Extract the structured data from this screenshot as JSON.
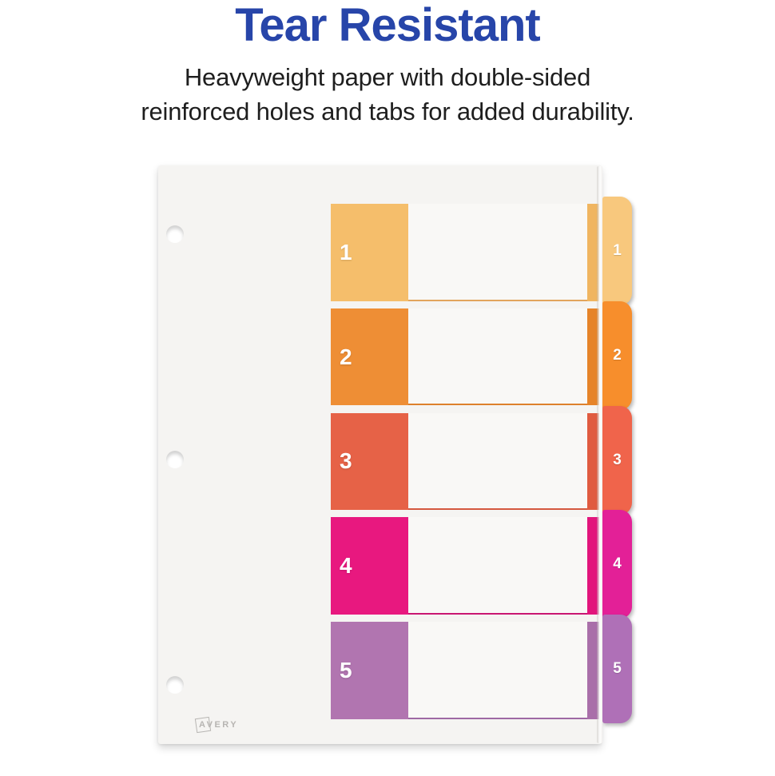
{
  "header": {
    "title": "Tear Resistant",
    "subtitle_line1": "Heavyweight paper with double-sided",
    "subtitle_line2": "reinforced holes and tabs for added durability."
  },
  "theme": {
    "title_color": "#2745A9",
    "subtitle_color": "#1E1E1E",
    "page_background": "#FFFFFF",
    "sheet_color": "#F5F4F2",
    "row_area_color": "#F9F8F6",
    "hole_color": "#FFFFFF",
    "brand_color": "#B7B5B2"
  },
  "product": {
    "brand": "AVERY",
    "type": "customizable-table-of-contents-divider",
    "hole_count": 3,
    "tabs": [
      {
        "label": "1",
        "block_color": "#F5BE6B",
        "tab_color": "#F8C87D",
        "strip_color": "#F0B560",
        "line_color": "#E2A45C"
      },
      {
        "label": "2",
        "block_color": "#EE8E35",
        "tab_color": "#F78E2C",
        "strip_color": "#E68429",
        "line_color": "#DD812D"
      },
      {
        "label": "3",
        "block_color": "#E66247",
        "tab_color": "#F0644B",
        "strip_color": "#E05B40",
        "line_color": "#D5583E"
      },
      {
        "label": "4",
        "block_color": "#E8187F",
        "tab_color": "#E32097",
        "strip_color": "#E2157C",
        "line_color": "#C91672"
      },
      {
        "label": "5",
        "block_color": "#B175B0",
        "tab_color": "#AF70B7",
        "strip_color": "#A96FA9",
        "line_color": "#9F69A4"
      }
    ]
  }
}
